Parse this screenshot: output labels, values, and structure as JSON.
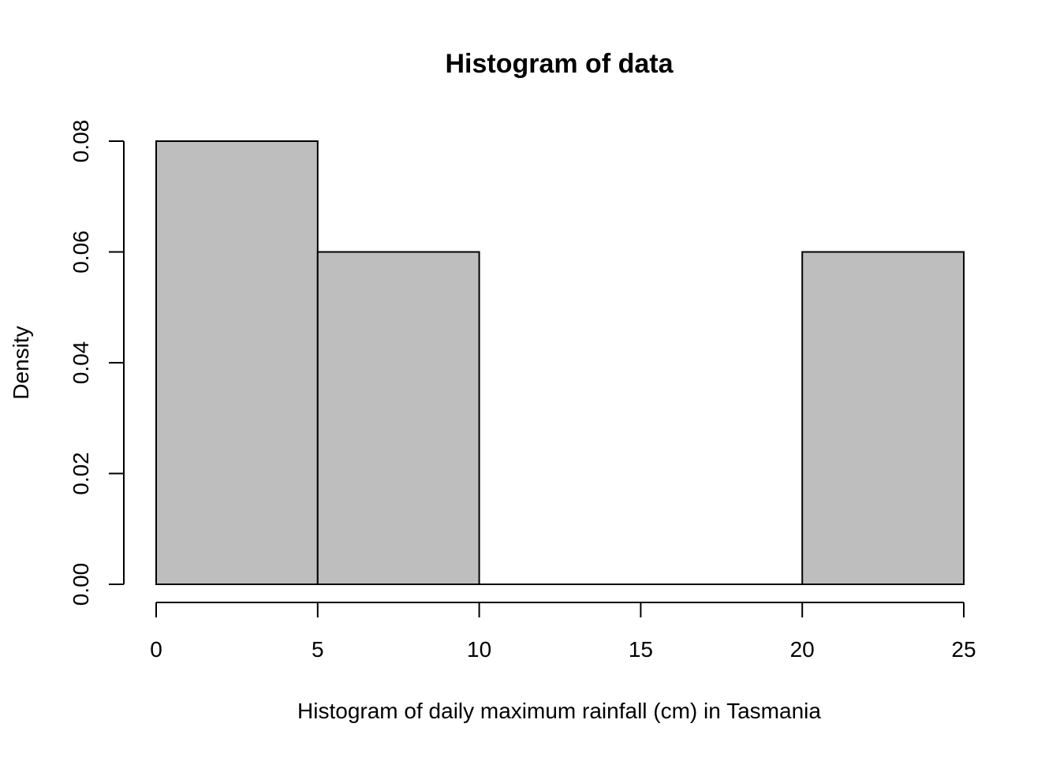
{
  "chart_data": {
    "type": "bar",
    "title": "Histogram of data",
    "xlabel": "Histogram of daily maximum rainfall (cm) in Tasmania",
    "ylabel": "Density",
    "bins": [
      {
        "x0": 0,
        "x1": 5,
        "density": 0.08
      },
      {
        "x0": 5,
        "x1": 10,
        "density": 0.06
      },
      {
        "x0": 10,
        "x1": 15,
        "density": 0.0
      },
      {
        "x0": 15,
        "x1": 20,
        "density": 0.0
      },
      {
        "x0": 20,
        "x1": 25,
        "density": 0.06
      }
    ],
    "xlim": [
      0,
      25
    ],
    "ylim": [
      0,
      0.08
    ],
    "x_ticks": [
      0,
      5,
      10,
      15,
      20,
      25
    ],
    "x_tick_labels": [
      "0",
      "5",
      "10",
      "15",
      "20",
      "25"
    ],
    "y_ticks": [
      0,
      0.02,
      0.04,
      0.06,
      0.08
    ],
    "y_tick_labels": [
      "0.00",
      "0.02",
      "0.04",
      "0.06",
      "0.08"
    ],
    "bar_color": "#bebebe",
    "grid": false,
    "legend": "none"
  }
}
